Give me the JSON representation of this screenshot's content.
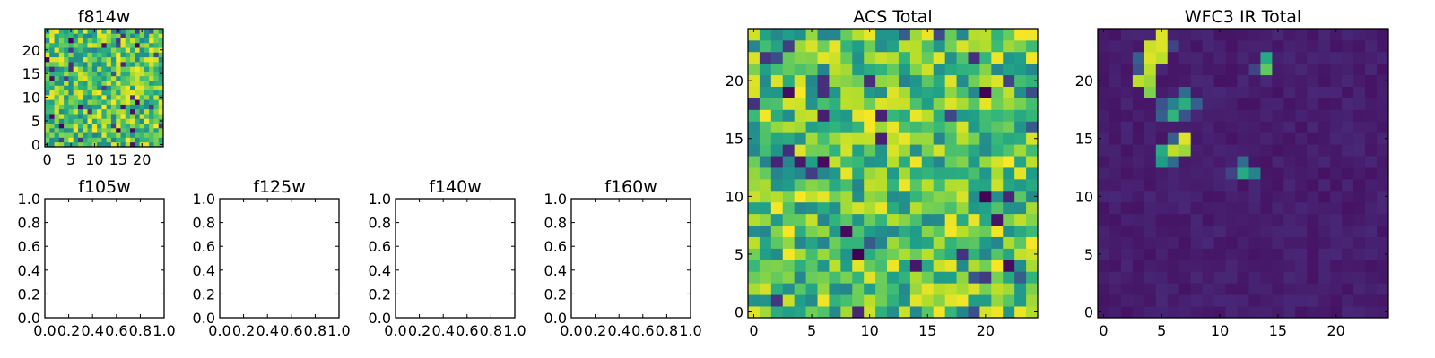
{
  "chart_data": [
    {
      "id": "f814w",
      "type": "heatmap",
      "title": "f814w",
      "grid_size": [
        25,
        25
      ],
      "colormap": "viridis",
      "value_range": [
        0,
        1
      ],
      "x_ticks": [
        "0",
        "5",
        "10",
        "15",
        "20"
      ],
      "y_ticks": [
        "0",
        "5",
        "10",
        "15",
        "20"
      ],
      "xlim": [
        -0.5,
        24.5
      ],
      "ylim": [
        -0.5,
        24.5
      ],
      "pattern": "uniform random noise, mostly green-yellow",
      "seed": 11
    },
    {
      "id": "f105w",
      "type": "empty",
      "title": "f105w",
      "x_ticks": [
        "0.0",
        "0.2",
        "0.4",
        "0.6",
        "0.8",
        "1.0"
      ],
      "y_ticks": [
        "0.0",
        "0.2",
        "0.4",
        "0.6",
        "0.8",
        "1.0"
      ],
      "xlim": [
        0,
        1
      ],
      "ylim": [
        0,
        1
      ]
    },
    {
      "id": "f125w",
      "type": "empty",
      "title": "f125w",
      "x_ticks": [
        "0.0",
        "0.2",
        "0.4",
        "0.6",
        "0.8",
        "1.0"
      ],
      "y_ticks": [
        "0.0",
        "0.2",
        "0.4",
        "0.6",
        "0.8",
        "1.0"
      ],
      "xlim": [
        0,
        1
      ],
      "ylim": [
        0,
        1
      ]
    },
    {
      "id": "f140w",
      "type": "empty",
      "title": "f140w",
      "x_ticks": [
        "0.0",
        "0.2",
        "0.4",
        "0.6",
        "0.8",
        "1.0"
      ],
      "y_ticks": [
        "0.0",
        "0.2",
        "0.4",
        "0.6",
        "0.8",
        "1.0"
      ],
      "xlim": [
        0,
        1
      ],
      "ylim": [
        0,
        1
      ]
    },
    {
      "id": "f160w",
      "type": "empty",
      "title": "f160w",
      "x_ticks": [
        "0.0",
        "0.2",
        "0.4",
        "0.6",
        "0.8",
        "1.0"
      ],
      "y_ticks": [
        "0.0",
        "0.2",
        "0.4",
        "0.6",
        "0.8",
        "1.0"
      ],
      "xlim": [
        0,
        1
      ],
      "ylim": [
        0,
        1
      ]
    },
    {
      "id": "acs_total",
      "type": "heatmap",
      "title": "ACS Total",
      "grid_size": [
        25,
        25
      ],
      "colormap": "viridis",
      "value_range": [
        0,
        1
      ],
      "x_ticks": [
        "0",
        "5",
        "10",
        "15",
        "20"
      ],
      "y_ticks": [
        "0",
        "5",
        "10",
        "15",
        "20"
      ],
      "xlim": [
        -0.5,
        24.5
      ],
      "ylim": [
        -0.5,
        24.5
      ],
      "pattern": "uniform random noise, mostly green-yellow",
      "seed": 29
    },
    {
      "id": "wfc3_ir_total",
      "type": "heatmap",
      "title": "WFC3 IR Total",
      "grid_size": [
        25,
        25
      ],
      "colormap": "viridis",
      "value_range": [
        0,
        1
      ],
      "x_ticks": [
        "0",
        "5",
        "10",
        "15",
        "20"
      ],
      "y_ticks": [
        "0",
        "5",
        "10",
        "15",
        "20"
      ],
      "xlim": [
        -0.5,
        24.5
      ],
      "ylim": [
        -0.5,
        24.5
      ],
      "pattern": "low dark-purple background with a few bright sources",
      "background_level": 0.05,
      "seed": 47,
      "bright_pixels": [
        {
          "x": 5,
          "y": 24,
          "v": 0.95
        },
        {
          "x": 5,
          "y": 23,
          "v": 0.95
        },
        {
          "x": 4,
          "y": 23,
          "v": 0.92
        },
        {
          "x": 5,
          "y": 22,
          "v": 0.9
        },
        {
          "x": 4,
          "y": 22,
          "v": 0.95
        },
        {
          "x": 4,
          "y": 21,
          "v": 0.9
        },
        {
          "x": 4,
          "y": 20,
          "v": 0.85
        },
        {
          "x": 3,
          "y": 20,
          "v": 0.9
        },
        {
          "x": 4,
          "y": 19,
          "v": 0.8
        },
        {
          "x": 3,
          "y": 22,
          "v": 0.3
        },
        {
          "x": 6,
          "y": 23,
          "v": 0.2
        },
        {
          "x": 3,
          "y": 21,
          "v": 0.25
        },
        {
          "x": 14,
          "y": 21,
          "v": 0.75
        },
        {
          "x": 14,
          "y": 22,
          "v": 0.6
        },
        {
          "x": 13,
          "y": 21,
          "v": 0.2
        },
        {
          "x": 7,
          "y": 19,
          "v": 0.35
        },
        {
          "x": 6,
          "y": 18,
          "v": 0.45
        },
        {
          "x": 7,
          "y": 18,
          "v": 0.62
        },
        {
          "x": 8,
          "y": 18,
          "v": 0.3
        },
        {
          "x": 6,
          "y": 17,
          "v": 0.65
        },
        {
          "x": 5,
          "y": 17,
          "v": 0.3
        },
        {
          "x": 7,
          "y": 17,
          "v": 0.25
        },
        {
          "x": 5,
          "y": 18,
          "v": 0.25
        },
        {
          "x": 7,
          "y": 15,
          "v": 0.95
        },
        {
          "x": 7,
          "y": 14,
          "v": 0.85
        },
        {
          "x": 6,
          "y": 14,
          "v": 0.9
        },
        {
          "x": 5,
          "y": 14,
          "v": 0.6
        },
        {
          "x": 5,
          "y": 13,
          "v": 0.55
        },
        {
          "x": 6,
          "y": 13,
          "v": 0.35
        },
        {
          "x": 6,
          "y": 15,
          "v": 0.3
        },
        {
          "x": 12,
          "y": 12,
          "v": 0.6
        },
        {
          "x": 13,
          "y": 12,
          "v": 0.45
        },
        {
          "x": 12,
          "y": 13,
          "v": 0.35
        },
        {
          "x": 11,
          "y": 12,
          "v": 0.2
        }
      ]
    }
  ]
}
